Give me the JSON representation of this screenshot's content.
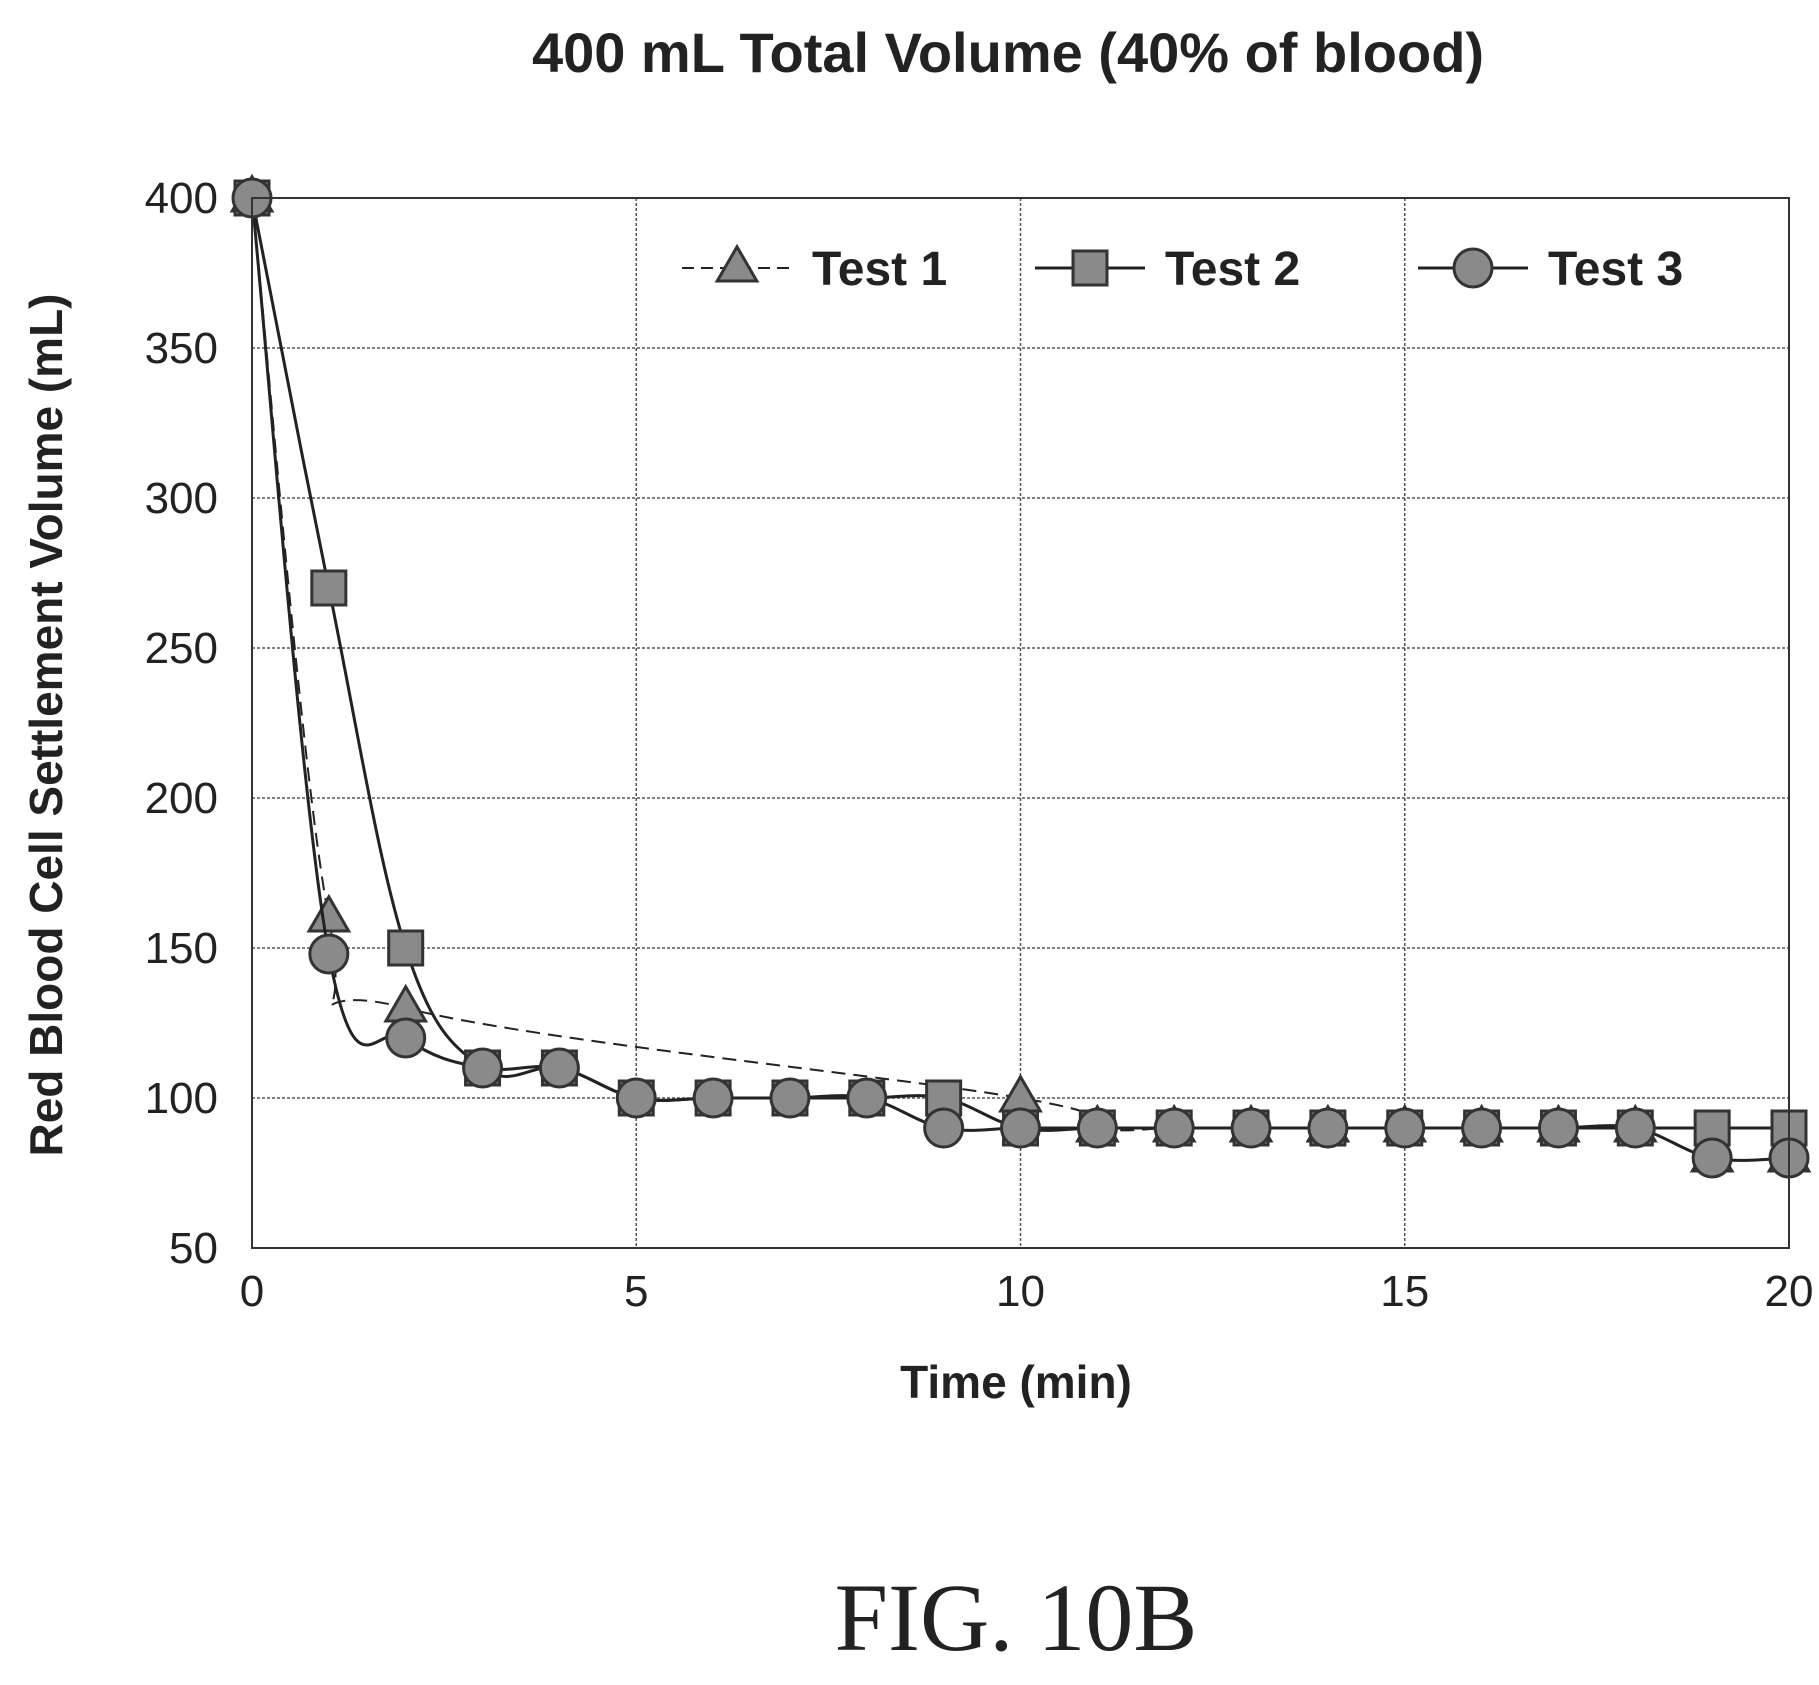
{
  "chart_data": {
    "type": "line",
    "title": "400 mL Total Volume (40% of blood)",
    "xlabel": "Time (min)",
    "ylabel": "Red Blood Cell Settlement Volume (mL)",
    "xlim": [
      0,
      20
    ],
    "ylim": [
      50,
      400
    ],
    "xticks": [
      "0",
      "5",
      "10",
      "15",
      "20"
    ],
    "yticks": [
      "50",
      "100",
      "150",
      "200",
      "250",
      "300",
      "350",
      "400"
    ],
    "grid": true,
    "legend_position": "top-right",
    "series": [
      {
        "name": "Test 1",
        "marker": "triangle",
        "line_style": "dashed",
        "x": [
          0,
          1,
          2,
          10,
          11,
          12,
          13,
          14,
          15,
          16,
          17,
          18,
          19,
          20
        ],
        "y": [
          400,
          160,
          130,
          100,
          90,
          90,
          90,
          90,
          90,
          90,
          90,
          90,
          80,
          80
        ]
      },
      {
        "name": "Test 2",
        "marker": "square",
        "line_style": "solid",
        "x": [
          0,
          1,
          2,
          3,
          4,
          5,
          6,
          7,
          8,
          9,
          10,
          11,
          12,
          13,
          14,
          15,
          16,
          17,
          18,
          19,
          20
        ],
        "y": [
          400,
          270,
          150,
          110,
          110,
          100,
          100,
          100,
          100,
          100,
          90,
          90,
          90,
          90,
          90,
          90,
          90,
          90,
          90,
          90,
          90
        ]
      },
      {
        "name": "Test 3",
        "marker": "circle",
        "line_style": "solid",
        "x": [
          0,
          1,
          2,
          3,
          4,
          5,
          6,
          7,
          8,
          9,
          10,
          11,
          12,
          13,
          14,
          15,
          16,
          17,
          18,
          19,
          20
        ],
        "y": [
          400,
          148,
          120,
          110,
          110,
          100,
          100,
          100,
          100,
          90,
          90,
          90,
          90,
          90,
          90,
          90,
          90,
          90,
          90,
          80,
          80
        ]
      }
    ]
  },
  "figure_label": "FIG. 10B",
  "colors": {
    "ink": "#222222",
    "marker_fill": "#8a8a8a",
    "marker_stroke": "#333333",
    "grid": "#555555"
  }
}
